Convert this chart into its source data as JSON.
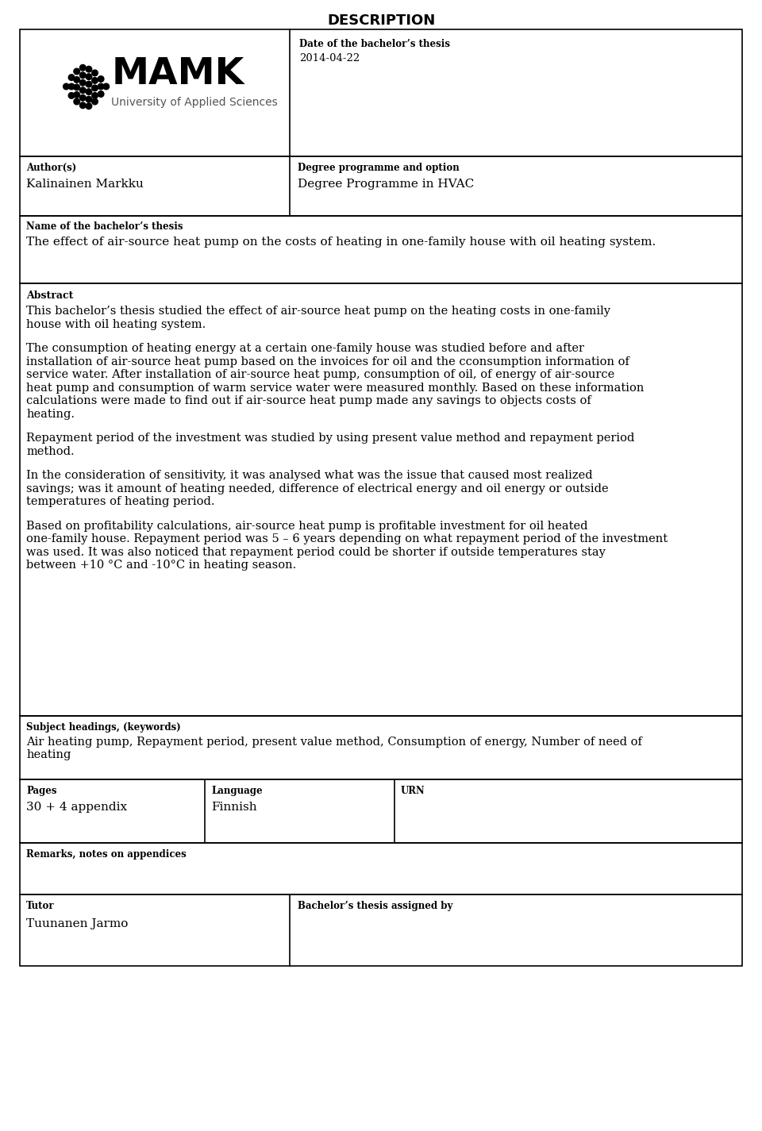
{
  "title": "DESCRIPTION",
  "date_label": "Date of the bachelor’s thesis",
  "date_value": "2014-04-22",
  "author_label": "Author(s)",
  "author_value": "Kalinainen Markku",
  "degree_label": "Degree programme and option",
  "degree_value": "Degree Programme in HVAC",
  "thesis_name_label": "Name of the bachelor’s thesis",
  "thesis_name_value": "The effect of air-source heat pump on the costs of heating in one-family house with oil heating system.",
  "abstract_label": "Abstract",
  "abstract_para1": "This bachelor’s thesis studied the effect of air-source heat pump on the heating costs in one-family house with oil heating system.",
  "abstract_para2": "The consumption of heating energy at a certain one-family house was studied before and after installation of air-source heat pump based on the  invoices for oil and the cconsumption information of service water. After installation of air-source heat pump, consumption of oil, of energy of air-source heat pump and consumption of warm service water were measured monthly. Based on these information calculations were made to find out if air-source heat pump made any savings to objects costs of heating.",
  "abstract_para3": "Repayment period of the investment was studied by using present value method and repayment period method.",
  "abstract_para4": "In the consideration of sensitivity, it was analysed what was the issue that caused most realized savings; was it amount of heating needed, difference of electrical energy and oil energy or outside temperatures of heating period.",
  "abstract_para5": "Based on profitability calculations, air-source heat pump is profitable investment for oil heated one-family house. Repayment period was 5 – 6 years depending on what repayment period of the investment was used. It was also noticed that repayment period could be shorter if outside temperatures stay between +10 °C and -10°C in heating season.",
  "keywords_label": "Subject headings, (keywords)",
  "keywords_value": "Air heating pump, Repayment period, present value method, Consumption of energy, Number of need of heating",
  "pages_label": "Pages",
  "pages_value": "30 + 4 appendix",
  "language_label": "Language",
  "language_value": "Finnish",
  "urn_label": "URN",
  "remarks_label": "Remarks, notes on appendices",
  "tutor_label": "Tutor",
  "tutor_value": "Tuunanen Jarmo",
  "assigned_label": "Bachelor’s thesis assigned by",
  "bg_color": "#ffffff",
  "border_color": "#000000",
  "text_color": "#000000"
}
